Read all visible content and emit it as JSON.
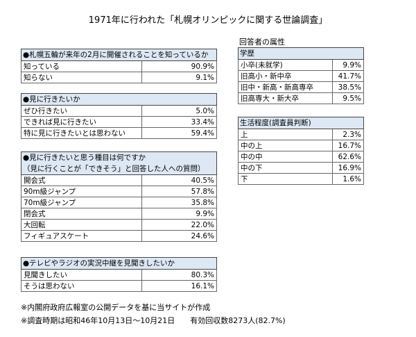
{
  "title": "1971年に行われた「札幌オリンピックに関する世論調査」",
  "attributes_label": "回答者の属性",
  "tables": [
    {
      "header": [
        "●札幌五輪が来年の2月に開催されることを知っているか"
      ],
      "rows": [
        [
          "知っている",
          "90.9%"
        ],
        [
          "知らない",
          "9.1%"
        ]
      ]
    },
    {
      "header": [
        "●見に行きたいか"
      ],
      "rows": [
        [
          "ぜひ行きたい",
          "5.0%"
        ],
        [
          "できれば見に行きたい",
          "33.4%"
        ],
        [
          "特に見に行きたいとは思わない",
          "59.4%"
        ]
      ]
    },
    {
      "header": [
        "●見に行きたいと思う種目は何ですか",
        "（見に行くことが「できそう」と回答した人への質問）"
      ],
      "rows": [
        [
          "開会式",
          "40.5%"
        ],
        [
          "90m級ジャンプ",
          "57.8%"
        ],
        [
          "70m級ジャンプ",
          "35.8%"
        ],
        [
          "閉会式",
          "9.9%"
        ],
        [
          "大回転",
          "22.0%"
        ],
        [
          "フィギュアスケート",
          "24.6%"
        ]
      ]
    },
    {
      "header": [
        "●テレビやラジオの実況中継を見聞きしたいか"
      ],
      "rows": [
        [
          "見聞きしたい",
          "80.3%"
        ],
        [
          "そうは思わない",
          "16.1%"
        ]
      ]
    },
    {
      "header": [
        "学歴"
      ],
      "rows": [
        [
          "小卒(未就学)",
          "9.9%"
        ],
        [
          "旧高小・新中卒",
          "41.7%"
        ],
        [
          "旧中・新高・新高専卒",
          "38.5%"
        ],
        [
          "旧高専大・新大卒",
          "9.5%"
        ]
      ]
    },
    {
      "header": [
        "生活程度(調査員判断)"
      ],
      "rows": [
        [
          "上",
          "2.3%"
        ],
        [
          "中の上",
          "16.7%"
        ],
        [
          "中の中",
          "62.6%"
        ],
        [
          "中の下",
          "16.9%"
        ],
        [
          "下",
          "1.6%"
        ]
      ]
    }
  ],
  "notes": [
    "※内閣府政府広報室の公開データを基に当サイトが作成",
    "※調査時期は昭和46年10月13日～10月21日　　有効回収数8273人(82.7%)"
  ]
}
